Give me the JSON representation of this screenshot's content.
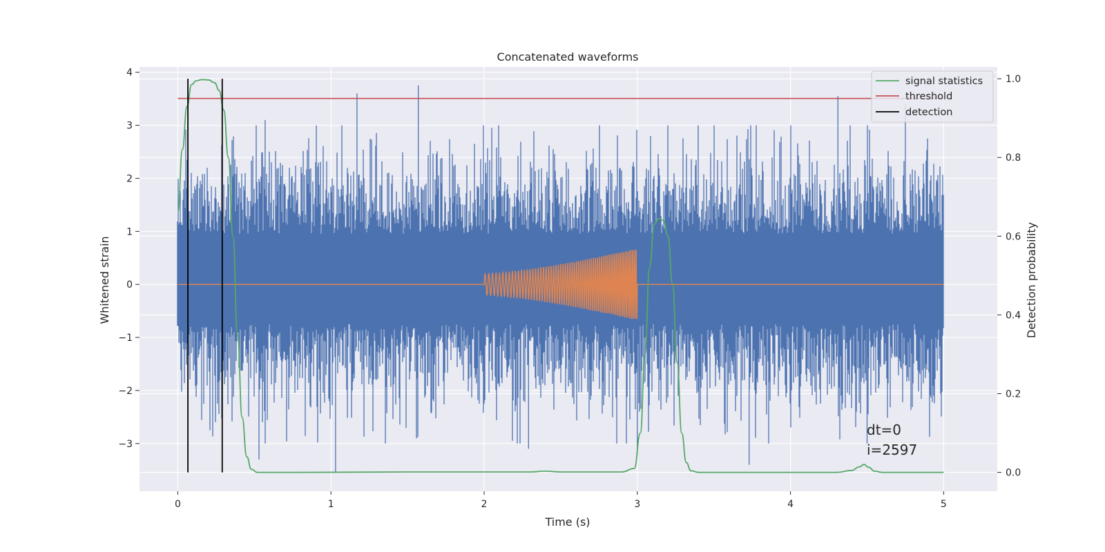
{
  "chart_data": {
    "type": "line",
    "title": "Concatenated waveforms",
    "xlabel": "Time (s)",
    "ylabel": "Whitened strain",
    "y2label": "Detection probability",
    "xlim": [
      -0.25,
      5.35
    ],
    "ylim": [
      -3.9,
      4.1
    ],
    "y2lim": [
      -0.048,
      1.03
    ],
    "x_ticks": [
      0,
      1,
      2,
      3,
      4,
      5
    ],
    "y_ticks": [
      -3,
      -2,
      -1,
      0,
      1,
      2,
      3,
      4
    ],
    "y2_ticks": [
      0.0,
      0.2,
      0.4,
      0.6,
      0.8,
      1.0
    ],
    "x_tick_labels": [
      "0",
      "1",
      "2",
      "3",
      "4",
      "5"
    ],
    "y_tick_labels": [
      "−3",
      "−2",
      "−1",
      "0",
      "1",
      "2",
      "3",
      "4"
    ],
    "y2_tick_labels": [
      "0.0",
      "0.2",
      "0.4",
      "0.6",
      "0.8",
      "1.0"
    ],
    "grid": true,
    "legend_position": "top-right",
    "colors": {
      "background": "#eaeaf2",
      "grid": "#ffffff",
      "strain": "#4c72b0",
      "template": "#dd8452",
      "signal_statistics": "#55a868",
      "threshold": "#c44e52",
      "detection": "#000000"
    },
    "series": [
      {
        "name": "signal statistics",
        "axis": "right",
        "color": "#55a868",
        "x": [
          0,
          0.03,
          0.06,
          0.09,
          0.12,
          0.16,
          0.2,
          0.24,
          0.27,
          0.3,
          0.33,
          0.36,
          0.39,
          0.42,
          0.45,
          0.48,
          0.52,
          0.8,
          1.5,
          2.3,
          2.4,
          2.5,
          2.9,
          2.98,
          3.02,
          3.05,
          3.08,
          3.11,
          3.14,
          3.17,
          3.2,
          3.23,
          3.26,
          3.29,
          3.32,
          3.35,
          3.4,
          4.3,
          4.4,
          4.45,
          4.48,
          4.51,
          4.55,
          4.6,
          5.0
        ],
        "y": [
          0.66,
          0.82,
          0.93,
          0.985,
          0.995,
          0.998,
          0.997,
          0.99,
          0.97,
          0.92,
          0.8,
          0.6,
          0.35,
          0.14,
          0.04,
          0.008,
          0.0,
          0.0,
          0.001,
          0.001,
          0.003,
          0.001,
          0.001,
          0.01,
          0.1,
          0.3,
          0.52,
          0.63,
          0.645,
          0.64,
          0.6,
          0.48,
          0.28,
          0.1,
          0.025,
          0.004,
          0.0,
          0.0,
          0.005,
          0.014,
          0.02,
          0.013,
          0.003,
          0.0,
          0.0
        ]
      },
      {
        "name": "threshold",
        "axis": "right",
        "color": "#c44e52",
        "x": [
          0,
          5
        ],
        "y": [
          0.95,
          0.95
        ]
      },
      {
        "name": "detection",
        "axis": "right",
        "color": "#000000",
        "events": [
          0.066,
          0.29
        ],
        "y": [
          0,
          1.0
        ]
      }
    ],
    "strain_noise": {
      "axis": "left",
      "color": "#4c72b0",
      "x_range": [
        0,
        5
      ],
      "band": [
        -0.6,
        0.8
      ],
      "peaks": [
        {
          "x": 1.17,
          "y": 3.6
        },
        {
          "x": 1.57,
          "y": 3.75
        },
        {
          "x": 0.57,
          "y": 3.1
        },
        {
          "x": 4.31,
          "y": 3.55
        },
        {
          "x": 4.75,
          "y": 3.4
        },
        {
          "x": 2.05,
          "y": 2.95
        },
        {
          "x": 1.03,
          "y": -3.55
        },
        {
          "x": 0.53,
          "y": -3.3
        },
        {
          "x": 3.73,
          "y": -3.4
        },
        {
          "x": 3.0,
          "y": -3.2
        },
        {
          "x": 2.29,
          "y": -3.1
        },
        {
          "x": 4.5,
          "y": -3.0
        }
      ]
    },
    "chirp": {
      "axis": "left",
      "color": "#dd8452",
      "x_range": [
        2.0,
        3.0
      ],
      "amplitude_start": 0.2,
      "amplitude_end": 0.68
    },
    "annotations": [
      "dt=0",
      "i=2597"
    ]
  }
}
